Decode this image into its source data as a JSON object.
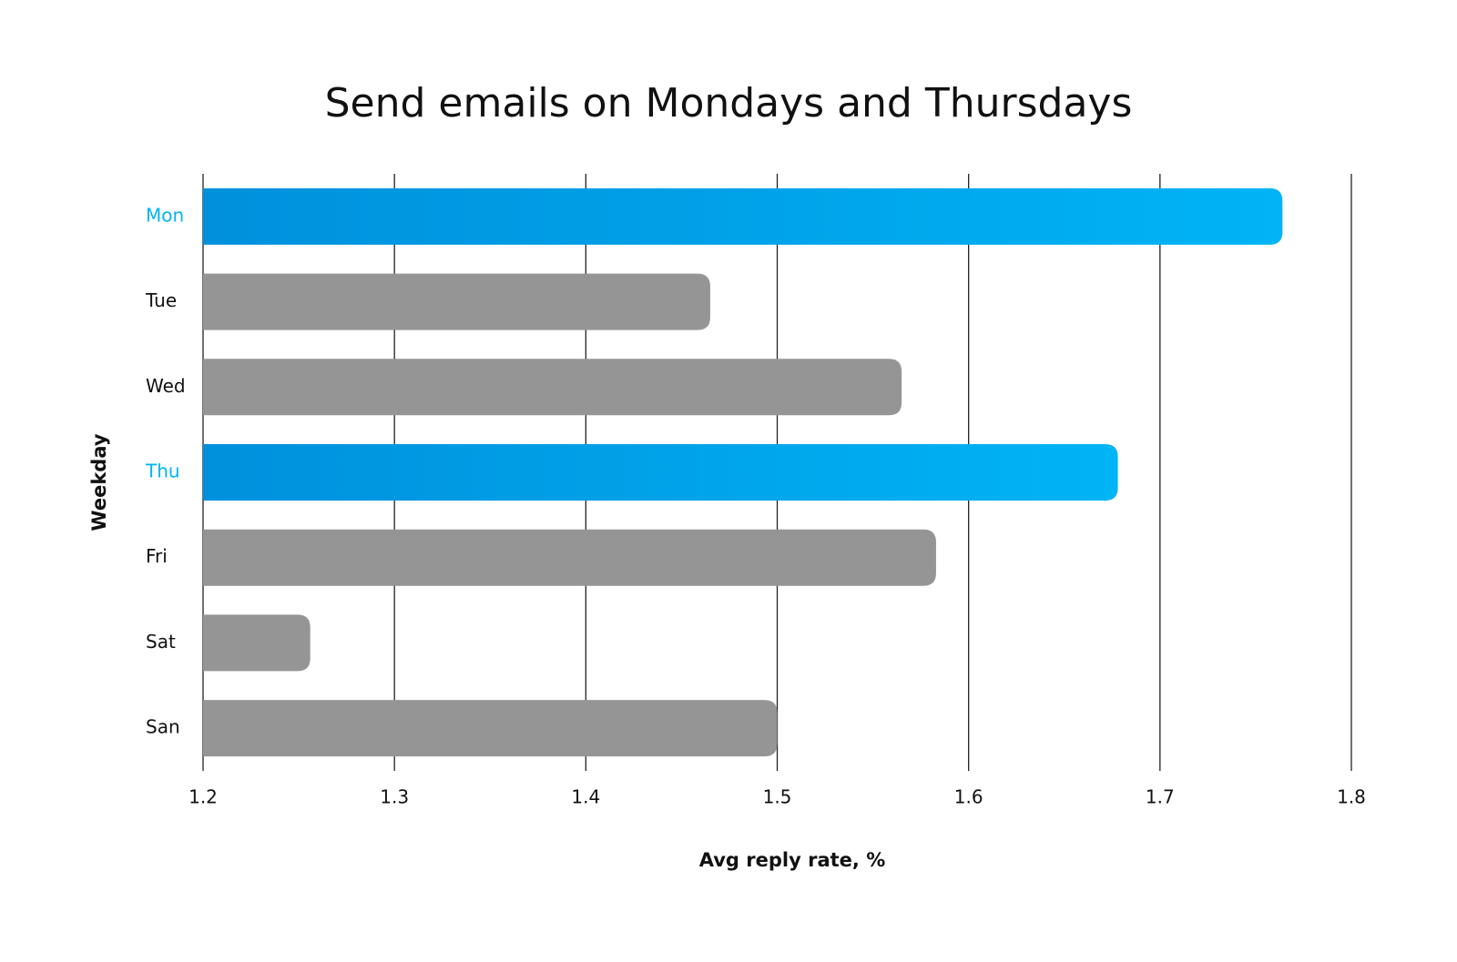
{
  "chart_data": {
    "type": "barh",
    "title": "Send emails on Mondays and Thursdays",
    "x_label": "Avg reply rate, %",
    "y_label": "Weekday",
    "categories": [
      "Mon",
      "Tue",
      "Wed",
      "Thu",
      "Fri",
      "Sat",
      "San"
    ],
    "values": [
      1.764,
      1.465,
      1.565,
      1.678,
      1.583,
      1.256,
      1.5
    ],
    "highlighted": [
      true,
      false,
      false,
      true,
      false,
      false,
      false
    ],
    "color": "#959595",
    "highlight_color": "#00b4f5",
    "highlight_color_start": "#0090dc",
    "xlim": [
      1.2,
      1.8
    ],
    "xticks": [
      1.2,
      1.3,
      1.4,
      1.5,
      1.6,
      1.7,
      1.8
    ],
    "grid": true
  }
}
